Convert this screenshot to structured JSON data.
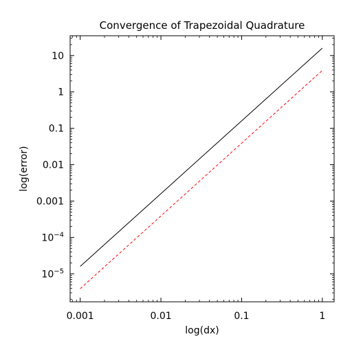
{
  "chart_data": {
    "type": "line",
    "title": "Convergence of Trapezoidal Quadrature",
    "xlabel": "log(dx)",
    "ylabel": "log(error)",
    "xscale": "log",
    "yscale": "log",
    "xlim": [
      0.00075,
      1.4
    ],
    "ylim": [
      1.7e-06,
      35
    ],
    "grid": false,
    "xticks": [
      {
        "value": 0.001,
        "label": "0.001"
      },
      {
        "value": 0.01,
        "label": "0.01"
      },
      {
        "value": 0.1,
        "label": "0.1"
      },
      {
        "value": 1,
        "label": "1"
      }
    ],
    "yticks": [
      {
        "value": 1e-05,
        "base": "10",
        "exp": "−5"
      },
      {
        "value": 0.0001,
        "base": "10",
        "exp": "−4"
      },
      {
        "value": 0.001,
        "label": "0.001"
      },
      {
        "value": 0.01,
        "label": "0.01"
      },
      {
        "value": 0.1,
        "label": "0.1"
      },
      {
        "value": 1,
        "label": "1"
      },
      {
        "value": 10,
        "label": "10"
      }
    ],
    "series": [
      {
        "color": "#000000",
        "dash": "solid",
        "x": [
          0.001,
          1
        ],
        "y": [
          1.6e-05,
          16
        ]
      },
      {
        "color": "#ff0000",
        "dash": "dashed",
        "x": [
          0.001,
          1
        ],
        "y": [
          3.9e-06,
          3.9
        ]
      }
    ]
  }
}
